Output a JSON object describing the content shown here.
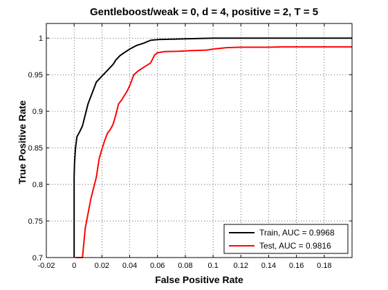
{
  "chart_data": {
    "type": "line",
    "title": "Gentleboost/weak = 0, d = 4, positive = 2, T = 5",
    "xlabel": "False Positive Rate",
    "ylabel": "True Positive Rate",
    "xlim": [
      -0.02,
      0.2
    ],
    "ylim": [
      0.7,
      1.02
    ],
    "xticks": [
      -0.02,
      0,
      0.02,
      0.04,
      0.06,
      0.08,
      0.1,
      0.12,
      0.14,
      0.16,
      0.18
    ],
    "xtick_labels": [
      "-0.02",
      "0",
      "0.02",
      "0.04",
      "0.06",
      "0.08",
      "0.1",
      "0.12",
      "0.14",
      "0.16",
      "0.18"
    ],
    "yticks": [
      0.7,
      0.75,
      0.8,
      0.85,
      0.9,
      0.95,
      1
    ],
    "ytick_labels": [
      "0.7",
      "0.75",
      "0.8",
      "0.85",
      "0.9",
      "0.95",
      "1"
    ],
    "grid": true,
    "grid_style": "dotted",
    "legend_position": "bottom-right",
    "series": [
      {
        "name": "Train, AUC = 0.9968",
        "color": "#000000",
        "x": [
          0,
          0,
          0.0003,
          0.001,
          0.002,
          0.004,
          0.006,
          0.008,
          0.01,
          0.012,
          0.014,
          0.016,
          0.018,
          0.02,
          0.022,
          0.025,
          0.028,
          0.03,
          0.033,
          0.036,
          0.04,
          0.045,
          0.05,
          0.055,
          0.06,
          0.07,
          0.08,
          0.09,
          0.1,
          0.11,
          0.13,
          0.2
        ],
        "y": [
          0.7,
          0.81,
          0.83,
          0.85,
          0.865,
          0.872,
          0.88,
          0.895,
          0.91,
          0.92,
          0.93,
          0.94,
          0.944,
          0.948,
          0.952,
          0.958,
          0.964,
          0.97,
          0.976,
          0.98,
          0.985,
          0.99,
          0.993,
          0.997,
          0.998,
          0.9985,
          0.999,
          0.9995,
          1,
          1,
          1,
          1
        ]
      },
      {
        "name": "Test, AUC = 0.9816",
        "color": "#ff0000",
        "x": [
          0.001,
          0.001,
          0.006,
          0.008,
          0.01,
          0.012,
          0.014,
          0.016,
          0.018,
          0.02,
          0.022,
          0.024,
          0.026,
          0.028,
          0.03,
          0.032,
          0.034,
          0.036,
          0.038,
          0.04,
          0.043,
          0.046,
          0.05,
          0.055,
          0.058,
          0.06,
          0.065,
          0.075,
          0.085,
          0.095,
          0.1,
          0.105,
          0.11,
          0.12,
          0.14,
          0.15,
          0.16,
          0.2
        ],
        "y": [
          0.7,
          0.7,
          0.7,
          0.74,
          0.76,
          0.78,
          0.795,
          0.81,
          0.835,
          0.848,
          0.86,
          0.87,
          0.875,
          0.882,
          0.895,
          0.91,
          0.915,
          0.921,
          0.927,
          0.935,
          0.95,
          0.955,
          0.96,
          0.966,
          0.977,
          0.98,
          0.9815,
          0.982,
          0.983,
          0.9835,
          0.985,
          0.986,
          0.987,
          0.9875,
          0.9875,
          0.988,
          0.988,
          0.988
        ]
      }
    ]
  }
}
